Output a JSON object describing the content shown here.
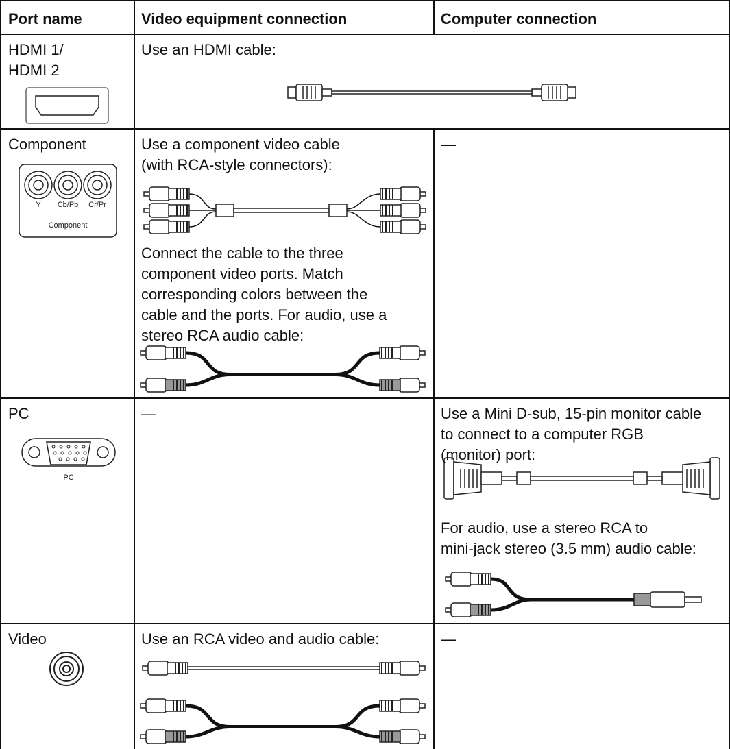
{
  "header": {
    "port_name": "Port name",
    "video": "Video equipment connection",
    "computer": "Computer connection"
  },
  "rows": [
    {
      "port_name": [
        "HDMI 1/",
        "HDMI 2"
      ],
      "video": [
        "Use an HDMI cable:"
      ]
    },
    {
      "port_name": [
        "Component"
      ],
      "port_labels": [
        "Y",
        "Cb/Pb",
        "Cr/Pr",
        "Component"
      ],
      "video": [
        "Use a component video cable",
        "(with RCA-style connectors):"
      ],
      "video_note": [
        "Connect the cable to the three",
        "component video ports. Match",
        "corresponding colors between the",
        "cable and the ports. For audio, use a",
        "stereo RCA audio cable:"
      ],
      "computer": [
        "—"
      ]
    },
    {
      "port_name": [
        "PC"
      ],
      "port_labels": [
        "PC"
      ],
      "video": [
        "—"
      ],
      "computer": [
        "Use a Mini D-sub, 15-pin monitor cable",
        "to connect to a computer RGB",
        "(monitor) port:"
      ],
      "computer_note": [
        "For audio, use a stereo RCA to",
        "mini-jack stereo (3.5 mm) audio cable:"
      ]
    },
    {
      "port_name": [
        "Video"
      ],
      "video": [
        "Use an RCA video and audio cable:"
      ],
      "computer": [
        "—"
      ]
    }
  ]
}
